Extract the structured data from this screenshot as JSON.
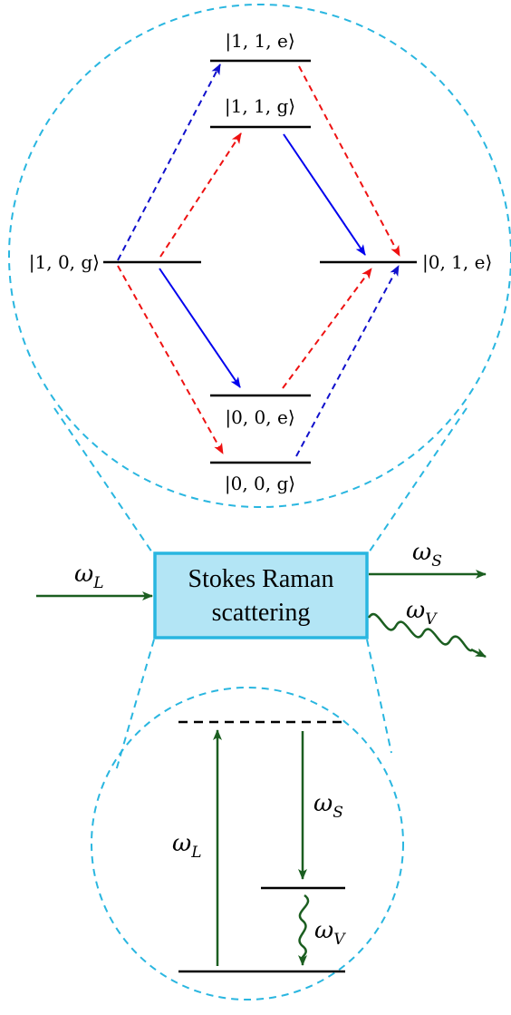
{
  "colors": {
    "circle": "#29b6e0",
    "box_fill": "#b3e5f5",
    "box_stroke": "#29b6e0",
    "photon": "#1b5e20",
    "solid_arrow": "#0000ee",
    "red_dashed": "#ee1111",
    "blue_dashed": "#1010cc"
  },
  "top_levels": {
    "s11e": "|1, 1, e⟩",
    "s11g": "|1, 1, g⟩",
    "s10g": "|1, 0, g⟩",
    "s01e": "|0, 1, e⟩",
    "s00e": "|0, 0, e⟩",
    "s00g": "|0, 0, g⟩"
  },
  "box": {
    "line1": "Stokes Raman",
    "line2": "scattering"
  },
  "beams": {
    "laser": {
      "base": "ω",
      "sub": "L"
    },
    "stokes": {
      "base": "ω",
      "sub": "S"
    },
    "vibration": {
      "base": "ω",
      "sub": "V"
    }
  },
  "bottom": {
    "laser": {
      "base": "ω",
      "sub": "L"
    },
    "stokes": {
      "base": "ω",
      "sub": "S"
    },
    "vibration": {
      "base": "ω",
      "sub": "V"
    }
  }
}
